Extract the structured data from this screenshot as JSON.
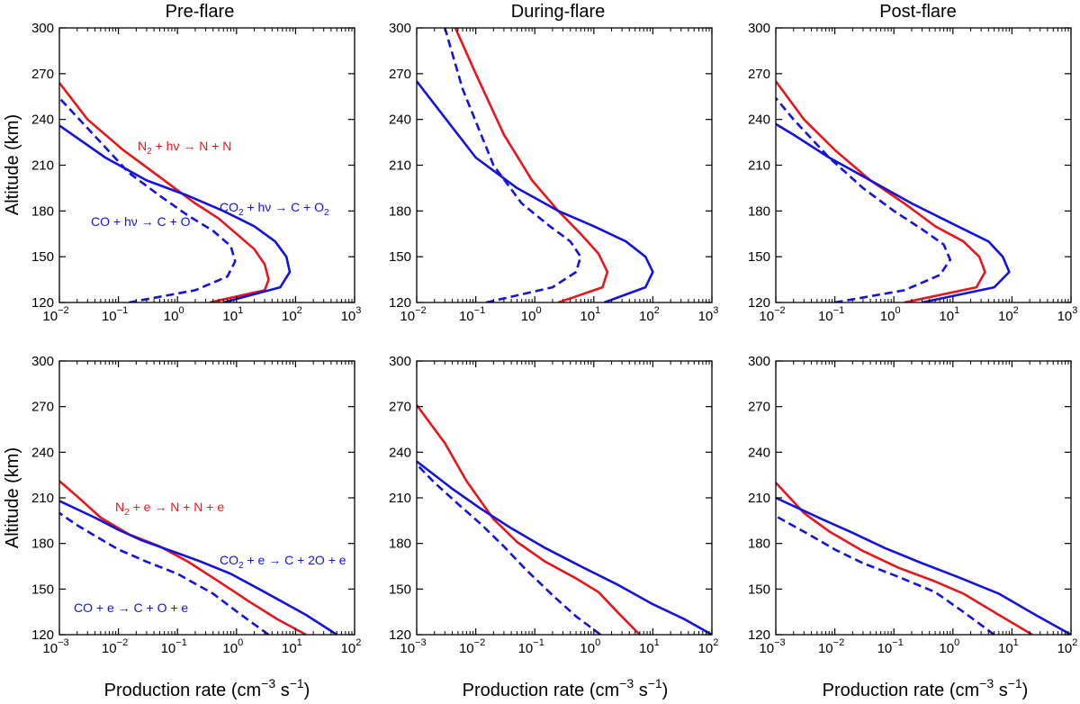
{
  "colors": {
    "red": "#e8161b",
    "blue": "#1313dd",
    "axis": "#000000"
  },
  "figure": {
    "ylabel": "Altitude (km)",
    "xlabel_main": "Production rate (cm",
    "xlabel_exp1": "−3",
    "xlabel_mid": " s",
    "xlabel_exp2": "−1",
    "xlabel_close": ")"
  },
  "chart_data": [
    {
      "type": "line",
      "title": "Pre-flare",
      "xscale": "log",
      "xlim": [
        0.01,
        1000
      ],
      "ylim": [
        120,
        300
      ],
      "xticks": [
        "10",
        "10",
        "10",
        "10",
        "10",
        "10"
      ],
      "xtick_exps": [
        "−2",
        "−1",
        "0",
        "1",
        "2",
        "3"
      ],
      "yticks": [
        "120",
        "150",
        "180",
        "210",
        "240",
        "270",
        "300"
      ],
      "series": [
        {
          "name": "N2 photodissociation",
          "color": "red",
          "style": "solid",
          "x": [
            3.5,
            30,
            35,
            30,
            20,
            10,
            5,
            2,
            0.6,
            0.12,
            0.03,
            0.01
          ],
          "y": [
            120,
            128,
            135,
            145,
            155,
            165,
            175,
            185,
            200,
            220,
            240,
            264
          ]
        },
        {
          "name": "CO2 photodissociation",
          "color": "blue",
          "style": "solid",
          "x": [
            6,
            55,
            80,
            70,
            45,
            20,
            6,
            1.5,
            0.3,
            0.06,
            0.01
          ],
          "y": [
            120,
            130,
            140,
            150,
            160,
            170,
            180,
            190,
            200,
            215,
            236
          ]
        },
        {
          "name": "CO photodissociation",
          "color": "blue",
          "style": "dashed",
          "x": [
            0.15,
            2,
            7,
            9.5,
            8,
            4,
            1.5,
            0.5,
            0.15,
            0.05,
            0.01
          ],
          "y": [
            120,
            128,
            137,
            147,
            157,
            167,
            177,
            190,
            205,
            225,
            254
          ]
        }
      ],
      "annotations": [
        {
          "color": "red",
          "base1": "N",
          "sub1": "2",
          "text": " + hν → N + N"
        },
        {
          "color": "blue",
          "base1": "CO",
          "sub1": "2",
          "text": " + hν → C + O",
          "sub2": "2"
        },
        {
          "color": "blue",
          "base1": "CO + hν → C + O",
          "sub1": "",
          "text": ""
        }
      ]
    },
    {
      "type": "line",
      "title": "During-flare",
      "xscale": "log",
      "xlim": [
        0.01,
        1000
      ],
      "ylim": [
        120,
        300
      ],
      "xticks": [
        "10",
        "10",
        "10",
        "10",
        "10",
        "10"
      ],
      "xtick_exps": [
        "−2",
        "−1",
        "0",
        "1",
        "2",
        "3"
      ],
      "yticks": [
        "120",
        "150",
        "180",
        "210",
        "240",
        "270",
        "300"
      ],
      "series": [
        {
          "name": "N2 photodissociation",
          "color": "red",
          "style": "solid",
          "x": [
            2.5,
            14,
            17,
            12,
            6,
            2.5,
            0.9,
            0.3,
            0.1,
            0.045
          ],
          "y": [
            120,
            130,
            140,
            152,
            165,
            180,
            200,
            230,
            270,
            300
          ]
        },
        {
          "name": "CO2 photodissociation",
          "color": "blue",
          "style": "solid",
          "x": [
            15,
            75,
            100,
            75,
            35,
            10,
            2.5,
            0.5,
            0.1,
            0.01
          ],
          "y": [
            120,
            130,
            140,
            150,
            160,
            170,
            180,
            195,
            215,
            265
          ]
        },
        {
          "name": "CO photodissociation",
          "color": "blue",
          "style": "dashed",
          "x": [
            0.15,
            2,
            5,
            6,
            4,
            1.8,
            0.6,
            0.2,
            0.06,
            0.03
          ],
          "y": [
            120,
            130,
            140,
            150,
            160,
            170,
            185,
            210,
            260,
            300
          ]
        }
      ]
    },
    {
      "type": "line",
      "title": "Post-flare",
      "xscale": "log",
      "xlim": [
        0.01,
        1000
      ],
      "ylim": [
        120,
        300
      ],
      "xticks": [
        "10",
        "10",
        "10",
        "10",
        "10",
        "10"
      ],
      "xtick_exps": [
        "−2",
        "−1",
        "0",
        "1",
        "2",
        "3"
      ],
      "yticks": [
        "120",
        "150",
        "180",
        "210",
        "240",
        "270",
        "300"
      ],
      "series": [
        {
          "name": "N2 photodissociation",
          "color": "red",
          "style": "solid",
          "x": [
            1.5,
            25,
            35,
            28,
            15,
            5,
            1.5,
            0.4,
            0.1,
            0.03,
            0.01
          ],
          "y": [
            120,
            130,
            140,
            150,
            160,
            170,
            185,
            200,
            220,
            240,
            265
          ]
        },
        {
          "name": "CO2 photodissociation",
          "color": "blue",
          "style": "solid",
          "x": [
            3,
            50,
            90,
            70,
            40,
            12,
            2,
            0.4,
            0.08,
            0.02,
            0.01
          ],
          "y": [
            120,
            130,
            140,
            150,
            160,
            170,
            185,
            200,
            215,
            230,
            237
          ]
        },
        {
          "name": "CO photodissociation",
          "color": "blue",
          "style": "dashed",
          "x": [
            0.1,
            1.5,
            6,
            9,
            7,
            3,
            1,
            0.3,
            0.08,
            0.02,
            0.01
          ],
          "y": [
            120,
            128,
            138,
            148,
            158,
            168,
            180,
            195,
            215,
            240,
            254
          ]
        }
      ]
    },
    {
      "type": "line",
      "title": "",
      "xscale": "log",
      "xlim": [
        0.001,
        100
      ],
      "ylim": [
        120,
        300
      ],
      "xticks": [
        "10",
        "10",
        "10",
        "10",
        "10",
        "10"
      ],
      "xtick_exps": [
        "−3",
        "−2",
        "−1",
        "0",
        "1",
        "2"
      ],
      "yticks": [
        "120",
        "150",
        "180",
        "210",
        "240",
        "270",
        "300"
      ],
      "series": [
        {
          "name": "N2 electron impact",
          "color": "red",
          "style": "solid",
          "x": [
            15,
            5,
            1.6,
            0.5,
            0.15,
            0.05,
            0.015,
            0.005,
            0.002,
            0.001
          ],
          "y": [
            120,
            130,
            142,
            155,
            168,
            178,
            186,
            197,
            211,
            221
          ]
        },
        {
          "name": "CO2 electron impact",
          "color": "blue",
          "style": "solid",
          "x": [
            50,
            15,
            3,
            0.8,
            0.25,
            0.08,
            0.025,
            0.01,
            0.004,
            0.001
          ],
          "y": [
            120,
            133,
            148,
            160,
            168,
            175,
            182,
            189,
            197,
            208
          ]
        },
        {
          "name": "CO electron impact",
          "color": "blue",
          "style": "dashed",
          "x": [
            3.5,
            1.2,
            0.4,
            0.1,
            0.03,
            0.01,
            0.004,
            0.002,
            0.001
          ],
          "y": [
            120,
            133,
            147,
            160,
            168,
            176,
            185,
            192,
            200
          ]
        }
      ],
      "annotations": [
        {
          "color": "red",
          "base1": "N",
          "sub1": "2",
          "text": " + e → N + N + e"
        },
        {
          "color": "blue",
          "base1": "CO",
          "sub1": "2",
          "text": " + e → C + 2O + e"
        },
        {
          "color": "blue",
          "base1": "CO + e → C + O + e",
          "sub1": "",
          "text": ""
        }
      ]
    },
    {
      "type": "line",
      "title": "",
      "xscale": "log",
      "xlim": [
        0.001,
        100
      ],
      "ylim": [
        120,
        300
      ],
      "xticks": [
        "10",
        "10",
        "10",
        "10",
        "10",
        "10"
      ],
      "xtick_exps": [
        "−3",
        "−2",
        "−1",
        "0",
        "1",
        "2"
      ],
      "yticks": [
        "120",
        "150",
        "180",
        "210",
        "240",
        "270",
        "300"
      ],
      "series": [
        {
          "name": "N2 electron impact",
          "color": "red",
          "style": "solid",
          "x": [
            6,
            2.5,
            1.2,
            0.5,
            0.15,
            0.05,
            0.02,
            0.007,
            0.003,
            0.001
          ],
          "y": [
            120,
            135,
            148,
            157,
            168,
            181,
            196,
            221,
            246,
            271
          ]
        },
        {
          "name": "CO2 electron impact",
          "color": "blue",
          "style": "solid",
          "x": [
            100,
            35,
            10,
            2.5,
            0.6,
            0.15,
            0.04,
            0.012,
            0.004,
            0.001
          ],
          "y": [
            120,
            130,
            140,
            153,
            165,
            177,
            190,
            203,
            216,
            234
          ]
        },
        {
          "name": "CO electron impact",
          "color": "blue",
          "style": "dashed",
          "x": [
            1.3,
            0.5,
            0.2,
            0.07,
            0.03,
            0.012,
            0.005,
            0.002,
            0.001
          ],
          "y": [
            120,
            132,
            146,
            163,
            178,
            193,
            206,
            220,
            232
          ]
        }
      ]
    },
    {
      "type": "line",
      "title": "",
      "xscale": "log",
      "xlim": [
        0.001,
        100
      ],
      "ylim": [
        120,
        300
      ],
      "xticks": [
        "10",
        "10",
        "10",
        "10",
        "10",
        "10"
      ],
      "xtick_exps": [
        "−3",
        "−2",
        "−1",
        "0",
        "1",
        "2"
      ],
      "yticks": [
        "120",
        "150",
        "180",
        "210",
        "240",
        "270",
        "300"
      ],
      "series": [
        {
          "name": "N2 electron impact",
          "color": "red",
          "style": "solid",
          "x": [
            22,
            6,
            1.5,
            0.5,
            0.12,
            0.03,
            0.008,
            0.003,
            0.001
          ],
          "y": [
            120,
            133,
            147,
            155,
            164,
            175,
            188,
            200,
            220
          ]
        },
        {
          "name": "CO2 electron impact",
          "color": "blue",
          "style": "solid",
          "x": [
            100,
            25,
            6,
            1.2,
            0.3,
            0.07,
            0.02,
            0.006,
            0.001
          ],
          "y": [
            120,
            133,
            147,
            158,
            167,
            177,
            187,
            196,
            210
          ]
        },
        {
          "name": "CO electron impact",
          "color": "blue",
          "style": "dashed",
          "x": [
            5,
            1.5,
            0.5,
            0.12,
            0.03,
            0.01,
            0.004,
            0.001
          ],
          "y": [
            120,
            135,
            148,
            158,
            167,
            176,
            185,
            198
          ]
        }
      ]
    }
  ]
}
